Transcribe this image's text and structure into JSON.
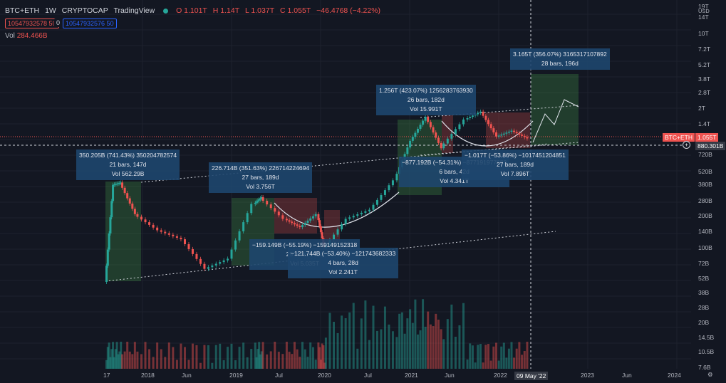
{
  "header": {
    "symbol": "BTC+ETH",
    "interval": "1W",
    "exchange": "CRYPTOCAP",
    "platform": "TradingView",
    "open": "O 1.101T",
    "high": "H 1.14T",
    "low": "L 1.037T",
    "close": "C 1.055T",
    "change": "−46.4768 (−4.22%)"
  },
  "inputs": {
    "red_value": "10547932578 50",
    "zero": "0",
    "blue_value": "10547932576 50"
  },
  "volume": {
    "label": "Vol",
    "value": "284.466B"
  },
  "axis": {
    "currency": "USD",
    "y_labels": [
      "19T",
      "14T",
      "10T",
      "7.2T",
      "5.2T",
      "3.8T",
      "2.8T",
      "2T",
      "1.4T",
      "720B",
      "520B",
      "380B",
      "280B",
      "200B",
      "140B",
      "100B",
      "72B",
      "52B",
      "38B",
      "28B",
      "20B",
      "14.5B",
      "10.5B",
      "7.6B"
    ],
    "x_labels": [
      "17",
      "2018",
      "Jun",
      "2019",
      "Jul",
      "2020",
      "Jul",
      "2021",
      "Jun",
      "2022",
      "2023",
      "Jun",
      "2024"
    ],
    "cursor_date": "09 May '22"
  },
  "price_tags": {
    "symbol_label": "BTC+ETH",
    "symbol_value": "1.055T",
    "crosshair_value": "880.301B"
  },
  "annotations": [
    {
      "l1": "350.205B (741.43%) 350204782574",
      "l2": "21 bars, 147d",
      "l3": "Vol 562.29B"
    },
    {
      "l1": "226.714B (351.63%) 226714224694",
      "l2": "27 bars, 189d",
      "l3": "Vol 3.756T"
    },
    {
      "l1": "−159.149B (−55.19%) −159149152318",
      "l2": "25 bars, 175d",
      "l3": "Vol 5.035T"
    },
    {
      "l1": "−121.744B (−53.40%) −121743682333",
      "l2": "4 bars, 28d",
      "l3": "Vol 2.241T"
    },
    {
      "l1": "1.256T (423.07%) 1256283763930",
      "l2": "26 bars, 182d",
      "l3": "Vol 15.991T"
    },
    {
      "l1": "−877.192B (−54.31%) −877191977683",
      "l2": "6 bars, 42d",
      "l3": "Vol 4.341T"
    },
    {
      "l1": "−1.017T (−53.86%) −1017451204851",
      "l2": "27 bars, 189d",
      "l3": "Vol 7.896T"
    },
    {
      "l1": "3.165T (356.07%) 3165317107892",
      "l2": "28 bars, 196d",
      "l3": ""
    }
  ],
  "colors": {
    "background": "#131722",
    "up": "#26a69a",
    "down": "#ef5350",
    "grid": "#1e222d",
    "box_green": "rgba(76,175,80,0.25)",
    "box_red": "rgba(239,83,80,0.25)",
    "annotation": "#1e466e"
  },
  "chart_data": {
    "type": "candlestick",
    "title": "BTC+ETH, 1W, CRYPTOCAP",
    "log_scale": true,
    "series": [
      {
        "name": "BTC+ETH",
        "approx_points": [
          [
            "2017-11",
            45
          ],
          [
            "2017-12",
            380
          ],
          [
            "2018-01",
            400
          ],
          [
            "2018-03",
            200
          ],
          [
            "2018-06",
            140
          ],
          [
            "2018-09",
            115
          ],
          [
            "2018-12",
            60
          ],
          [
            "2019-03",
            75
          ],
          [
            "2019-06",
            250
          ],
          [
            "2019-07",
            290
          ],
          [
            "2019-10",
            180
          ],
          [
            "2019-12",
            150
          ],
          [
            "2020-02",
            200
          ],
          [
            "2020-03",
            90
          ],
          [
            "2020-06",
            180
          ],
          [
            "2020-09",
            220
          ],
          [
            "2020-12",
            420
          ],
          [
            "2021-02",
            1000
          ],
          [
            "2021-04",
            1700
          ],
          [
            "2021-06",
            850
          ],
          [
            "2021-09",
            1600
          ],
          [
            "2021-11",
            1900
          ],
          [
            "2022-01",
            1100
          ],
          [
            "2022-03",
            1250
          ],
          [
            "2022-05",
            1055
          ]
        ]
      }
    ]
  }
}
